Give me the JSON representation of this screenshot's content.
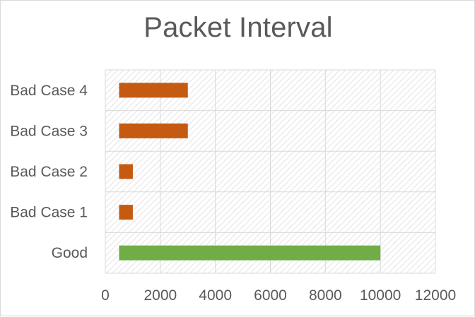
{
  "chart_data": {
    "type": "bar",
    "orientation": "horizontal",
    "title": "Packet Interval",
    "categories": [
      "Good",
      "Bad Case 1",
      "Bad Case 2",
      "Bad Case 3",
      "Bad Case 4"
    ],
    "series": [
      {
        "name": "Packet Interval",
        "start": [
          500,
          500,
          500,
          500,
          500
        ],
        "end": [
          10000,
          1000,
          1000,
          3000,
          3000
        ],
        "colors": [
          "#70ad47",
          "#c55a11",
          "#c55a11",
          "#c55a11",
          "#c55a11"
        ]
      }
    ],
    "xlim": [
      0,
      12000
    ],
    "xticks": [
      0,
      2000,
      4000,
      6000,
      8000,
      10000,
      12000
    ],
    "xlabel": "",
    "ylabel": "",
    "grid": true,
    "legend": "none"
  },
  "colors": {
    "good": "#70ad47",
    "bad": "#c55a11",
    "grid": "#d9d9d9",
    "hatch": "#d9d9d9",
    "text": "#595959"
  }
}
